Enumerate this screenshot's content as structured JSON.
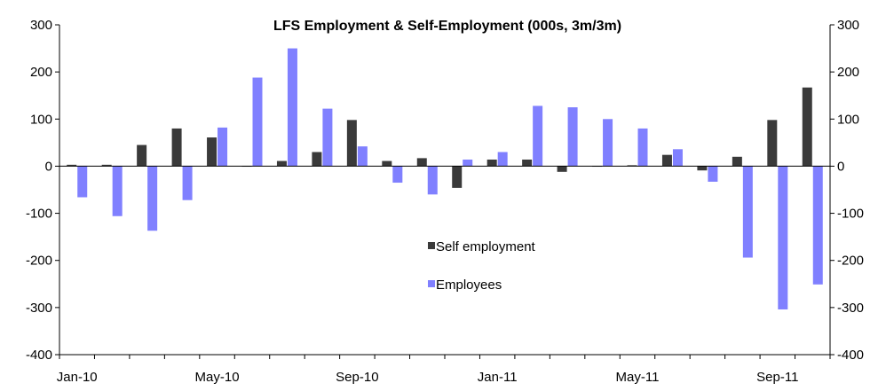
{
  "chart_data": {
    "type": "bar",
    "title": "LFS Employment & Self-Employment (000s,  3m/3m)",
    "xlabel": "",
    "ylabel": "",
    "ylim": [
      -400,
      300
    ],
    "y_ticks": [
      300,
      200,
      100,
      0,
      -100,
      -200,
      -300,
      -400
    ],
    "y_tick_labels": [
      "300",
      "200",
      "100",
      "0",
      "-100",
      "-200",
      "-300",
      "-400"
    ],
    "x_tick_labels": [
      "Jan-10",
      "May-10",
      "Sep-10",
      "Jan-11",
      "May-11",
      "Sep-11"
    ],
    "x_tick_index": [
      0,
      4,
      8,
      12,
      16,
      20
    ],
    "categories": [
      "Jan-10",
      "Feb-10",
      "Mar-10",
      "Apr-10",
      "May-10",
      "Jun-10",
      "Jul-10",
      "Aug-10",
      "Sep-10",
      "Oct-10",
      "Nov-10",
      "Dec-10",
      "Jan-11",
      "Feb-11",
      "Mar-11",
      "Apr-11",
      "May-11",
      "Jun-11",
      "Jul-11",
      "Aug-11",
      "Sep-11",
      "Oct-11"
    ],
    "series": [
      {
        "name": "Self employment",
        "color": "#3a3a3a",
        "values": [
          3,
          3,
          45,
          80,
          61,
          0,
          11,
          30,
          98,
          11,
          17,
          -46,
          14,
          14,
          -12,
          0,
          2,
          24,
          -9,
          20,
          98,
          167
        ]
      },
      {
        "name": "Employees",
        "color": "#8080ff",
        "values": [
          -66,
          -106,
          -137,
          -72,
          82,
          188,
          250,
          122,
          42,
          -35,
          -60,
          14,
          30,
          128,
          125,
          100,
          80,
          36,
          -33,
          -194,
          -304,
          -251
        ]
      }
    ],
    "legend_position": "center",
    "grid": false,
    "dual_axis_mirrored": true
  }
}
